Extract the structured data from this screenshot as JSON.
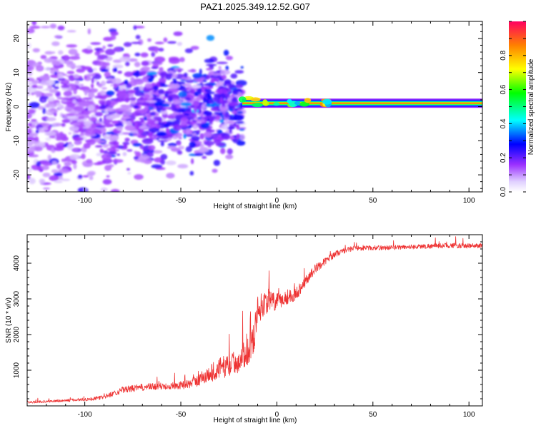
{
  "title": "PAZ1.2025.349.12.52.G07",
  "colors": {
    "snr_line": "#ee3333",
    "spec_low": "#e8dcff",
    "spec_mid": "#8a2be2"
  },
  "chart_data": [
    {
      "type": "heatmap",
      "name": "spectrogram",
      "xlabel": "Height of straight line (km)",
      "ylabel": "Frequency (Hz)",
      "xlim": [
        -130,
        107
      ],
      "ylim": [
        -25,
        25
      ],
      "xticks": [
        -100,
        -50,
        0,
        50,
        100
      ],
      "xtick_labels": [
        "-100",
        "-50",
        "0",
        "50",
        "100"
      ],
      "yticks": [
        -20,
        -10,
        0,
        10,
        20
      ],
      "ytick_labels": [
        "-20",
        "-10",
        "0",
        "10",
        "20"
      ],
      "noise_region_km": [
        -130,
        -18
      ],
      "signal_onset_km": -18,
      "signal_frequency_hz": 1,
      "signal_amplitude_max": 0.9,
      "colorbar": {
        "label": "Normalized spectral amplitude",
        "range": [
          0.0,
          1.0
        ],
        "ticks": [
          0.0,
          0.2,
          0.4,
          0.6,
          0.8
        ],
        "tick_labels": [
          "0.0",
          "0.2",
          "0.4",
          "0.6",
          "0.8"
        ]
      }
    },
    {
      "type": "line",
      "name": "snr",
      "xlabel": "Height of straight line (km)",
      "ylabel": "SNR (10 * v/v)",
      "xlim": [
        -130,
        107
      ],
      "ylim": [
        0,
        4800
      ],
      "xticks": [
        -100,
        -50,
        0,
        50,
        100
      ],
      "xtick_labels": [
        "-100",
        "-50",
        "0",
        "50",
        "100"
      ],
      "yticks": [
        1000,
        2000,
        3000,
        4000
      ],
      "ytick_labels": [
        "1000",
        "2000",
        "3000",
        "4000"
      ],
      "x": [
        -130,
        -110,
        -95,
        -90,
        -80,
        -70,
        -60,
        -50,
        -45,
        -40,
        -35,
        -30,
        -25,
        -20,
        -15,
        -12,
        -10,
        -5,
        0,
        5,
        10,
        15,
        20,
        25,
        30,
        35,
        40,
        50,
        60,
        70,
        80,
        90,
        100,
        107
      ],
      "values": [
        100,
        150,
        200,
        250,
        450,
        520,
        550,
        580,
        620,
        750,
        900,
        1050,
        1150,
        1250,
        1550,
        1900,
        2700,
        2950,
        2900,
        3050,
        3150,
        3500,
        3850,
        4050,
        4250,
        4350,
        4420,
        4430,
        4440,
        4460,
        4480,
        4500,
        4480,
        4500
      ],
      "noise_amp": [
        60,
        80,
        100,
        120,
        180,
        200,
        200,
        220,
        260,
        380,
        520,
        600,
        650,
        650,
        800,
        900,
        800,
        700,
        500,
        450,
        380,
        300,
        250,
        200,
        180,
        160,
        140,
        130,
        130,
        130,
        140,
        140,
        140,
        140
      ]
    }
  ]
}
